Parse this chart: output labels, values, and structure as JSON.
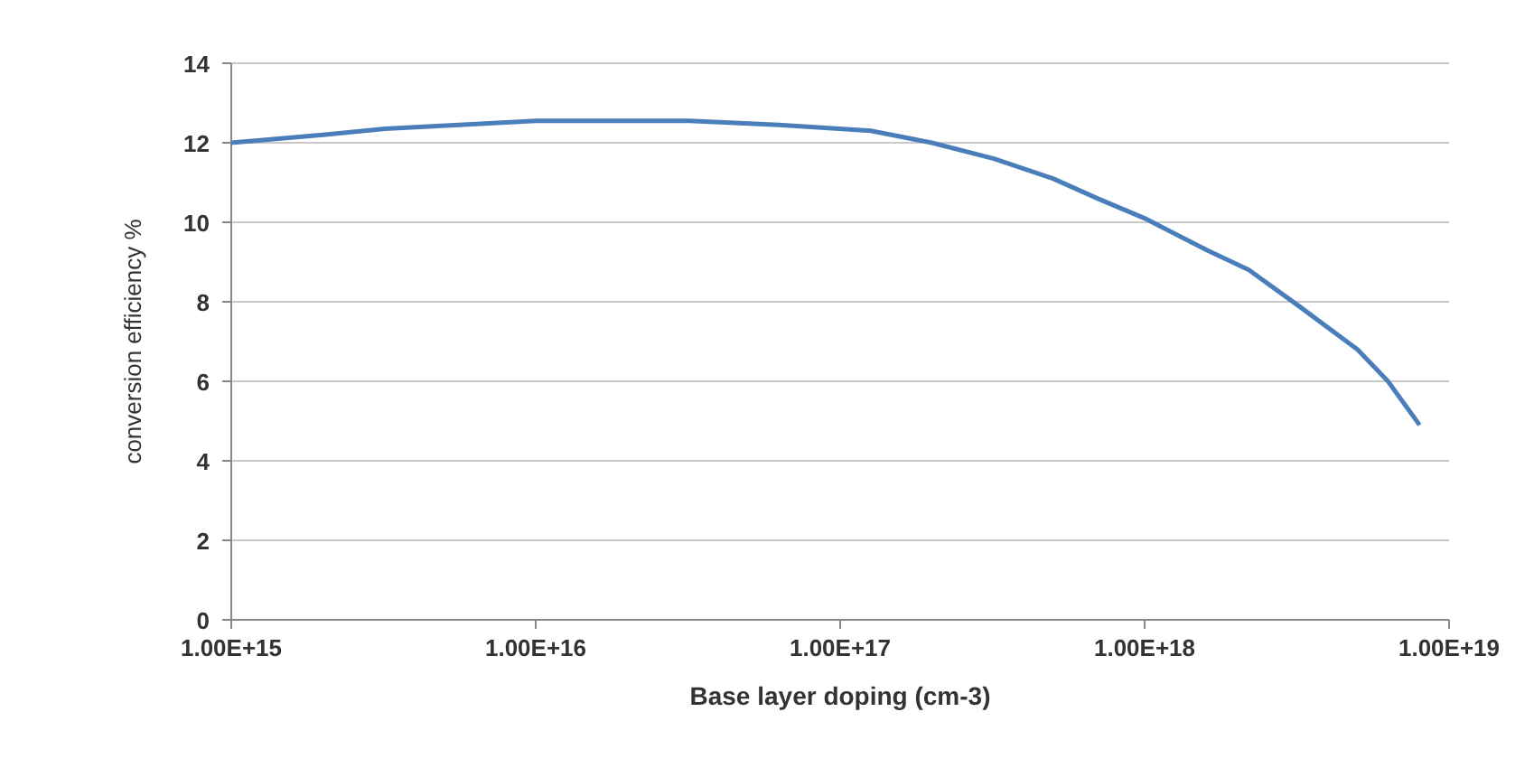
{
  "chart_data": {
    "type": "line",
    "xlabel": "Base layer doping (cm-3)",
    "ylabel": "conversion efficiency %",
    "log": "x",
    "grid": "y",
    "marker": "none",
    "line_style": "solid",
    "xlim": [
      1000000000000000.0,
      1e+19
    ],
    "xticks": [
      {
        "value": 1000000000000000.0,
        "label": "1.00E+15"
      },
      {
        "value": 1e+16,
        "label": "1.00E+16"
      },
      {
        "value": 1e+17,
        "label": "1.00E+17"
      },
      {
        "value": 1e+18,
        "label": "1.00E+18"
      },
      {
        "value": 1e+19,
        "label": "1.00E+19"
      }
    ],
    "ylim": [
      0,
      14
    ],
    "yticks": [
      0,
      2,
      4,
      6,
      8,
      10,
      12,
      14
    ],
    "series": [
      {
        "color": "#4a7ebb",
        "x": [
          1000000000000000.0,
          2000000000000000.0,
          3200000000000000.0,
          5600000000000000.0,
          1e+16,
          3.2e+16,
          6.3e+16,
          1.26e+17,
          2e+17,
          3.2e+17,
          5e+17,
          7e+17,
          1e+18,
          1.6e+18,
          2.2e+18,
          3.2e+18,
          5e+18,
          6.3e+18,
          8e+18
        ],
        "values": [
          12.0,
          12.2,
          12.35,
          12.45,
          12.55,
          12.55,
          12.45,
          12.3,
          12.0,
          11.6,
          11.1,
          10.6,
          10.1,
          9.3,
          8.8,
          7.9,
          6.8,
          6.0,
          4.9
        ]
      }
    ]
  }
}
